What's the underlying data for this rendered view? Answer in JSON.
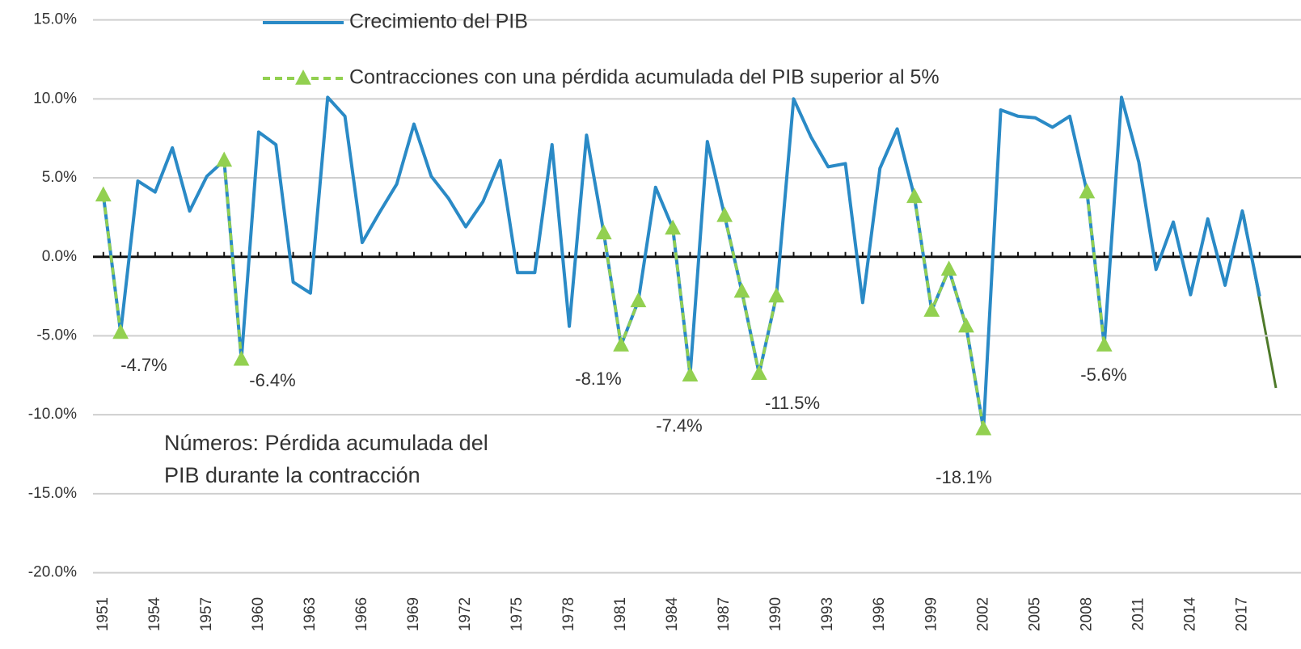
{
  "chart_data": {
    "type": "line",
    "x": [
      1951,
      1952,
      1953,
      1954,
      1955,
      1956,
      1957,
      1958,
      1959,
      1960,
      1961,
      1962,
      1963,
      1964,
      1965,
      1966,
      1967,
      1968,
      1969,
      1970,
      1971,
      1972,
      1973,
      1974,
      1975,
      1976,
      1977,
      1978,
      1979,
      1980,
      1981,
      1982,
      1983,
      1984,
      1985,
      1986,
      1987,
      1988,
      1989,
      1990,
      1991,
      1992,
      1993,
      1994,
      1995,
      1996,
      1997,
      1998,
      1999,
      2000,
      2001,
      2002,
      2003,
      2004,
      2005,
      2006,
      2007,
      2008,
      2009,
      2010,
      2011,
      2012,
      2013,
      2014,
      2015,
      2016,
      2017,
      2018
    ],
    "series": [
      {
        "name": "Crecimiento del PIB",
        "color": "#2a8ac6",
        "dashed": false,
        "markers": false,
        "values": [
          3.9,
          -4.8,
          4.8,
          4.1,
          6.9,
          2.9,
          5.1,
          6.1,
          -6.5,
          7.9,
          7.1,
          -1.6,
          -2.3,
          10.1,
          8.9,
          0.9,
          2.8,
          4.6,
          8.4,
          5.1,
          3.7,
          1.9,
          3.5,
          6.1,
          -1.0,
          -1.0,
          7.1,
          -4.4,
          7.7,
          1.5,
          -5.6,
          -2.8,
          4.4,
          1.8,
          -7.5,
          7.3,
          2.6,
          -2.2,
          -7.4,
          -2.5,
          10.0,
          7.6,
          5.7,
          5.9,
          -2.9,
          5.6,
          8.1,
          3.8,
          -3.4,
          -0.8,
          -4.4,
          -10.9,
          9.3,
          8.9,
          8.8,
          8.2,
          8.9,
          4.1,
          -5.6,
          10.1,
          6.0,
          -0.8,
          2.2,
          -2.4,
          2.4,
          -1.8,
          2.9,
          -2.5
        ]
      },
      {
        "name": "Contracciones con una pérdida acumulada del PIB superior al 5%",
        "color": "#92d050",
        "dashed": true,
        "markers": true,
        "values": [
          3.9,
          -4.8,
          null,
          null,
          null,
          null,
          null,
          6.1,
          -6.5,
          null,
          null,
          null,
          null,
          null,
          null,
          null,
          null,
          null,
          null,
          null,
          null,
          null,
          null,
          null,
          null,
          null,
          null,
          null,
          null,
          1.5,
          -5.6,
          -2.8,
          null,
          1.8,
          -7.5,
          null,
          2.6,
          -2.2,
          -7.4,
          -2.5,
          null,
          null,
          null,
          null,
          null,
          null,
          null,
          3.8,
          -3.4,
          -0.8,
          -4.4,
          -10.9,
          null,
          null,
          null,
          null,
          null,
          4.1,
          -5.6,
          null,
          null,
          null,
          null,
          null,
          null,
          null,
          null,
          null
        ]
      }
    ],
    "xlim": [
      1950.4,
      2020.4
    ],
    "xticks": [
      1951,
      1954,
      1957,
      1960,
      1963,
      1966,
      1969,
      1972,
      1975,
      1978,
      1981,
      1984,
      1987,
      1990,
      1993,
      1996,
      1999,
      2002,
      2005,
      2008,
      2011,
      2014,
      2017
    ],
    "ylim": [
      -20,
      15
    ],
    "yticks": [
      {
        "value": -20,
        "label": "-20.0%"
      },
      {
        "value": -15,
        "label": "-15.0%"
      },
      {
        "value": -10,
        "label": "-10.0%"
      },
      {
        "value": -5,
        "label": "-5.0%"
      },
      {
        "value": 0,
        "label": "0.0%"
      },
      {
        "value": 5,
        "label": "5.0%"
      },
      {
        "value": 10,
        "label": "10.0%"
      },
      {
        "value": 15,
        "label": "15.0%"
      }
    ],
    "grid": true,
    "contraction_labels": [
      "-4.7%",
      "-6.4%",
      "-8.1%",
      "-7.4%",
      "-11.5%",
      "-18.1%",
      "-5.6%"
    ],
    "note": [
      "Números: Pérdida acumulada del",
      "PIB durante la contracción"
    ]
  }
}
